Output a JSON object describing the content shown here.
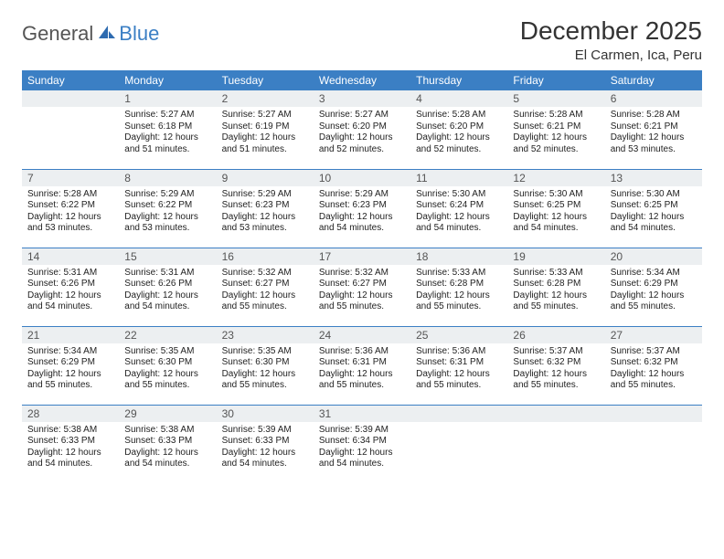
{
  "brand": {
    "general": "General",
    "blue": "Blue"
  },
  "title": "December 2025",
  "location": "El Carmen, Ica, Peru",
  "colors": {
    "header_bg": "#3b7fc4",
    "header_fg": "#ffffff",
    "band_bg": "#eceff1",
    "row_divider": "#3b7fc4",
    "text": "#333333"
  },
  "day_headers": [
    "Sunday",
    "Monday",
    "Tuesday",
    "Wednesday",
    "Thursday",
    "Friday",
    "Saturday"
  ],
  "weeks": [
    [
      {
        "n": "",
        "sr": "",
        "ss": "",
        "dl": ""
      },
      {
        "n": "1",
        "sr": "5:27 AM",
        "ss": "6:18 PM",
        "dl": "12 hours and 51 minutes."
      },
      {
        "n": "2",
        "sr": "5:27 AM",
        "ss": "6:19 PM",
        "dl": "12 hours and 51 minutes."
      },
      {
        "n": "3",
        "sr": "5:27 AM",
        "ss": "6:20 PM",
        "dl": "12 hours and 52 minutes."
      },
      {
        "n": "4",
        "sr": "5:28 AM",
        "ss": "6:20 PM",
        "dl": "12 hours and 52 minutes."
      },
      {
        "n": "5",
        "sr": "5:28 AM",
        "ss": "6:21 PM",
        "dl": "12 hours and 52 minutes."
      },
      {
        "n": "6",
        "sr": "5:28 AM",
        "ss": "6:21 PM",
        "dl": "12 hours and 53 minutes."
      }
    ],
    [
      {
        "n": "7",
        "sr": "5:28 AM",
        "ss": "6:22 PM",
        "dl": "12 hours and 53 minutes."
      },
      {
        "n": "8",
        "sr": "5:29 AM",
        "ss": "6:22 PM",
        "dl": "12 hours and 53 minutes."
      },
      {
        "n": "9",
        "sr": "5:29 AM",
        "ss": "6:23 PM",
        "dl": "12 hours and 53 minutes."
      },
      {
        "n": "10",
        "sr": "5:29 AM",
        "ss": "6:23 PM",
        "dl": "12 hours and 54 minutes."
      },
      {
        "n": "11",
        "sr": "5:30 AM",
        "ss": "6:24 PM",
        "dl": "12 hours and 54 minutes."
      },
      {
        "n": "12",
        "sr": "5:30 AM",
        "ss": "6:25 PM",
        "dl": "12 hours and 54 minutes."
      },
      {
        "n": "13",
        "sr": "5:30 AM",
        "ss": "6:25 PM",
        "dl": "12 hours and 54 minutes."
      }
    ],
    [
      {
        "n": "14",
        "sr": "5:31 AM",
        "ss": "6:26 PM",
        "dl": "12 hours and 54 minutes."
      },
      {
        "n": "15",
        "sr": "5:31 AM",
        "ss": "6:26 PM",
        "dl": "12 hours and 54 minutes."
      },
      {
        "n": "16",
        "sr": "5:32 AM",
        "ss": "6:27 PM",
        "dl": "12 hours and 55 minutes."
      },
      {
        "n": "17",
        "sr": "5:32 AM",
        "ss": "6:27 PM",
        "dl": "12 hours and 55 minutes."
      },
      {
        "n": "18",
        "sr": "5:33 AM",
        "ss": "6:28 PM",
        "dl": "12 hours and 55 minutes."
      },
      {
        "n": "19",
        "sr": "5:33 AM",
        "ss": "6:28 PM",
        "dl": "12 hours and 55 minutes."
      },
      {
        "n": "20",
        "sr": "5:34 AM",
        "ss": "6:29 PM",
        "dl": "12 hours and 55 minutes."
      }
    ],
    [
      {
        "n": "21",
        "sr": "5:34 AM",
        "ss": "6:29 PM",
        "dl": "12 hours and 55 minutes."
      },
      {
        "n": "22",
        "sr": "5:35 AM",
        "ss": "6:30 PM",
        "dl": "12 hours and 55 minutes."
      },
      {
        "n": "23",
        "sr": "5:35 AM",
        "ss": "6:30 PM",
        "dl": "12 hours and 55 minutes."
      },
      {
        "n": "24",
        "sr": "5:36 AM",
        "ss": "6:31 PM",
        "dl": "12 hours and 55 minutes."
      },
      {
        "n": "25",
        "sr": "5:36 AM",
        "ss": "6:31 PM",
        "dl": "12 hours and 55 minutes."
      },
      {
        "n": "26",
        "sr": "5:37 AM",
        "ss": "6:32 PM",
        "dl": "12 hours and 55 minutes."
      },
      {
        "n": "27",
        "sr": "5:37 AM",
        "ss": "6:32 PM",
        "dl": "12 hours and 55 minutes."
      }
    ],
    [
      {
        "n": "28",
        "sr": "5:38 AM",
        "ss": "6:33 PM",
        "dl": "12 hours and 54 minutes."
      },
      {
        "n": "29",
        "sr": "5:38 AM",
        "ss": "6:33 PM",
        "dl": "12 hours and 54 minutes."
      },
      {
        "n": "30",
        "sr": "5:39 AM",
        "ss": "6:33 PM",
        "dl": "12 hours and 54 minutes."
      },
      {
        "n": "31",
        "sr": "5:39 AM",
        "ss": "6:34 PM",
        "dl": "12 hours and 54 minutes."
      },
      {
        "n": "",
        "sr": "",
        "ss": "",
        "dl": ""
      },
      {
        "n": "",
        "sr": "",
        "ss": "",
        "dl": ""
      },
      {
        "n": "",
        "sr": "",
        "ss": "",
        "dl": ""
      }
    ]
  ],
  "labels": {
    "sunrise": "Sunrise:",
    "sunset": "Sunset:",
    "daylight": "Daylight:"
  }
}
